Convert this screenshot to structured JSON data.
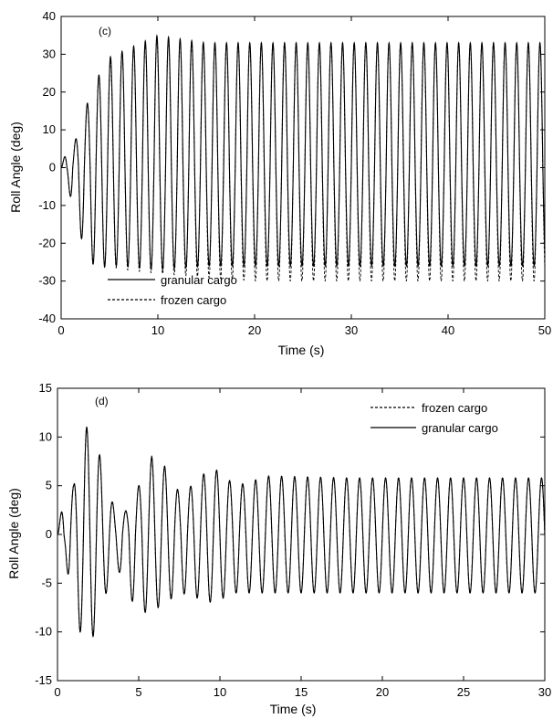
{
  "chart_data": [
    {
      "type": "line",
      "panel_label": "(c)",
      "xlabel": "Time (s)",
      "ylabel": "Roll Angle (deg)",
      "xlim": [
        0,
        50
      ],
      "ylim": [
        -40,
        40
      ],
      "xticks": [
        0,
        10,
        20,
        30,
        40,
        50
      ],
      "yticks": [
        -40,
        -30,
        -20,
        -10,
        0,
        10,
        20,
        30,
        40
      ],
      "legend_position": "bottom-left",
      "legend_order": [
        "granular cargo",
        "frozen cargo"
      ],
      "oscillation_period_s": 1.2,
      "series": [
        {
          "name": "granular cargo",
          "style": "solid",
          "envelope": [
            {
              "t": 0,
              "max": 0,
              "min": 0
            },
            {
              "t": 0.6,
              "max": 5,
              "min": -2
            },
            {
              "t": 1.2,
              "max": 5,
              "min": -12
            },
            {
              "t": 2.4,
              "max": 15,
              "min": -21
            },
            {
              "t": 3.6,
              "max": 23,
              "min": -27
            },
            {
              "t": 4.8,
              "max": 29,
              "min": -26
            },
            {
              "t": 6.5,
              "max": 31,
              "min": -26
            },
            {
              "t": 10,
              "max": 35,
              "min": -27
            },
            {
              "t": 15,
              "max": 33,
              "min": -26
            },
            {
              "t": 20,
              "max": 33,
              "min": -26
            },
            {
              "t": 30,
              "max": 33,
              "min": -26
            },
            {
              "t": 40,
              "max": 33,
              "min": -26
            },
            {
              "t": 50,
              "max": 33,
              "min": -26
            }
          ]
        },
        {
          "name": "frozen cargo",
          "style": "dashed",
          "envelope": [
            {
              "t": 0,
              "max": 0,
              "min": 0
            },
            {
              "t": 0.6,
              "max": 5,
              "min": -2
            },
            {
              "t": 1.2,
              "max": 5,
              "min": -12
            },
            {
              "t": 2.4,
              "max": 15,
              "min": -21
            },
            {
              "t": 3.6,
              "max": 23,
              "min": -27
            },
            {
              "t": 4.8,
              "max": 28,
              "min": -26
            },
            {
              "t": 6.5,
              "max": 31,
              "min": -27
            },
            {
              "t": 10,
              "max": 34,
              "min": -28
            },
            {
              "t": 15,
              "max": 33,
              "min": -29
            },
            {
              "t": 20,
              "max": 33,
              "min": -30
            },
            {
              "t": 30,
              "max": 33,
              "min": -30
            },
            {
              "t": 40,
              "max": 33,
              "min": -30
            },
            {
              "t": 50,
              "max": 33,
              "min": -30
            }
          ]
        }
      ]
    },
    {
      "type": "line",
      "panel_label": "(d)",
      "xlabel": "Time (s)",
      "ylabel": "Roll Angle (deg)",
      "xlim": [
        0,
        30
      ],
      "ylim": [
        -15,
        15
      ],
      "xticks": [
        0,
        5,
        10,
        15,
        20,
        25,
        30
      ],
      "yticks": [
        -15,
        -10,
        -5,
        0,
        5,
        10,
        15
      ],
      "legend_position": "top-right",
      "legend_order": [
        "frozen cargo",
        "granular cargo"
      ],
      "oscillation_period_s": 0.8,
      "series": [
        {
          "name": "frozen cargo",
          "style": "dashed",
          "envelope": [
            {
              "t": 0,
              "max": 0,
              "min": 0
            },
            {
              "t": 0.5,
              "max": 5,
              "min": -2
            },
            {
              "t": 1.0,
              "max": 5,
              "min": -10
            },
            {
              "t": 1.5,
              "max": 11,
              "min": -10
            },
            {
              "t": 2.1,
              "max": 11,
              "min": -11
            },
            {
              "t": 2.8,
              "max": 7,
              "min": -7
            },
            {
              "t": 3.6,
              "max": 2,
              "min": -3
            },
            {
              "t": 4.3,
              "max": 2.5,
              "min": -6
            },
            {
              "t": 5.0,
              "max": 5,
              "min": -8
            },
            {
              "t": 5.8,
              "max": 8,
              "min": -8
            },
            {
              "t": 6.6,
              "max": 7,
              "min": -7
            },
            {
              "t": 7.6,
              "max": 4,
              "min": -6
            },
            {
              "t": 9.5,
              "max": 7,
              "min": -7
            },
            {
              "t": 11,
              "max": 5,
              "min": -6
            },
            {
              "t": 13,
              "max": 6,
              "min": -6
            },
            {
              "t": 18,
              "max": 5.8,
              "min": -6
            },
            {
              "t": 25,
              "max": 5.8,
              "min": -6
            },
            {
              "t": 30,
              "max": 5.8,
              "min": -6
            }
          ]
        },
        {
          "name": "granular cargo",
          "style": "solid",
          "envelope": [
            {
              "t": 0,
              "max": 0,
              "min": 0
            },
            {
              "t": 0.5,
              "max": 5,
              "min": -2
            },
            {
              "t": 1.0,
              "max": 5,
              "min": -10
            },
            {
              "t": 1.5,
              "max": 11,
              "min": -10
            },
            {
              "t": 2.1,
              "max": 11,
              "min": -11
            },
            {
              "t": 2.8,
              "max": 7,
              "min": -7
            },
            {
              "t": 3.6,
              "max": 2,
              "min": -3
            },
            {
              "t": 4.3,
              "max": 2.5,
              "min": -6
            },
            {
              "t": 5.0,
              "max": 5,
              "min": -8
            },
            {
              "t": 5.8,
              "max": 8,
              "min": -8
            },
            {
              "t": 6.6,
              "max": 7,
              "min": -7
            },
            {
              "t": 7.6,
              "max": 4,
              "min": -6
            },
            {
              "t": 9.5,
              "max": 7,
              "min": -7
            },
            {
              "t": 11,
              "max": 5,
              "min": -6
            },
            {
              "t": 13,
              "max": 6,
              "min": -6
            },
            {
              "t": 18,
              "max": 5.8,
              "min": -6
            },
            {
              "t": 25,
              "max": 5.8,
              "min": -6
            },
            {
              "t": 30,
              "max": 5.8,
              "min": -6
            }
          ]
        }
      ]
    }
  ]
}
